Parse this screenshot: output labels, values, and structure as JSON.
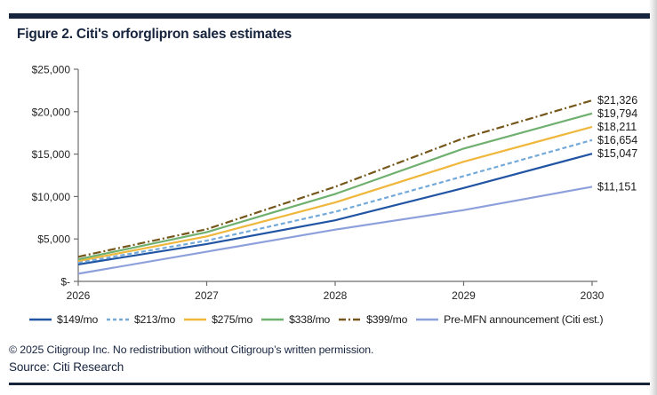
{
  "header": {
    "title": "Figure 2. Citi's orforglipron sales estimates"
  },
  "chart_data": {
    "type": "line",
    "title": "Figure 2. Citi's orforglipron sales estimates",
    "x": [
      2026,
      2027,
      2028,
      2029,
      2030
    ],
    "x_tick_labels": [
      "2026",
      "2027",
      "2028",
      "2029",
      "2030"
    ],
    "y_ticks": [
      0,
      5000,
      10000,
      15000,
      20000,
      25000
    ],
    "y_tick_labels": [
      "$-",
      "$5,000",
      "$10,000",
      "$15,000",
      "$20,000",
      "$25,000"
    ],
    "ylim": [
      0,
      25000
    ],
    "grid": false,
    "legend_position": "bottom",
    "series": [
      {
        "name": "$149/mo",
        "color": "#2155a4",
        "dash": "",
        "values": [
          2000,
          4400,
          7200,
          11000,
          15047
        ],
        "end_label": "$15,047"
      },
      {
        "name": "$213/mo",
        "color": "#74aad9",
        "dash": "5,3",
        "legend_dash": "4,3",
        "values": [
          2200,
          4800,
          8200,
          12400,
          16654
        ],
        "end_label": "$16,654"
      },
      {
        "name": "$275/mo",
        "color": "#efb73c",
        "dash": "",
        "values": [
          2400,
          5300,
          9300,
          14100,
          18211
        ],
        "end_label": "$18,211"
      },
      {
        "name": "$338/mo",
        "color": "#6fb06f",
        "dash": "",
        "values": [
          2600,
          5800,
          10300,
          15650,
          19794
        ],
        "end_label": "$19,794"
      },
      {
        "name": "$399/mo",
        "color": "#75571b",
        "dash": "9,3,2,3",
        "legend_dash": "8,3,2,3",
        "values": [
          2900,
          6150,
          11150,
          16875,
          21326
        ],
        "end_label": "$21,326"
      },
      {
        "name": "Pre-MFN announcement (Citi est.)",
        "color": "#8da0dc",
        "dash": "",
        "values": [
          900,
          3500,
          6100,
          8400,
          11151
        ],
        "end_label": "$11,151"
      }
    ]
  },
  "footer": {
    "copyright": "© 2025 Citigroup Inc. No redistribution without Citigroup’s written permission.",
    "source": "Source: Citi Research"
  },
  "colors": {
    "accent_navy": "#17243e",
    "axis_gray": "#6e6e6e"
  }
}
